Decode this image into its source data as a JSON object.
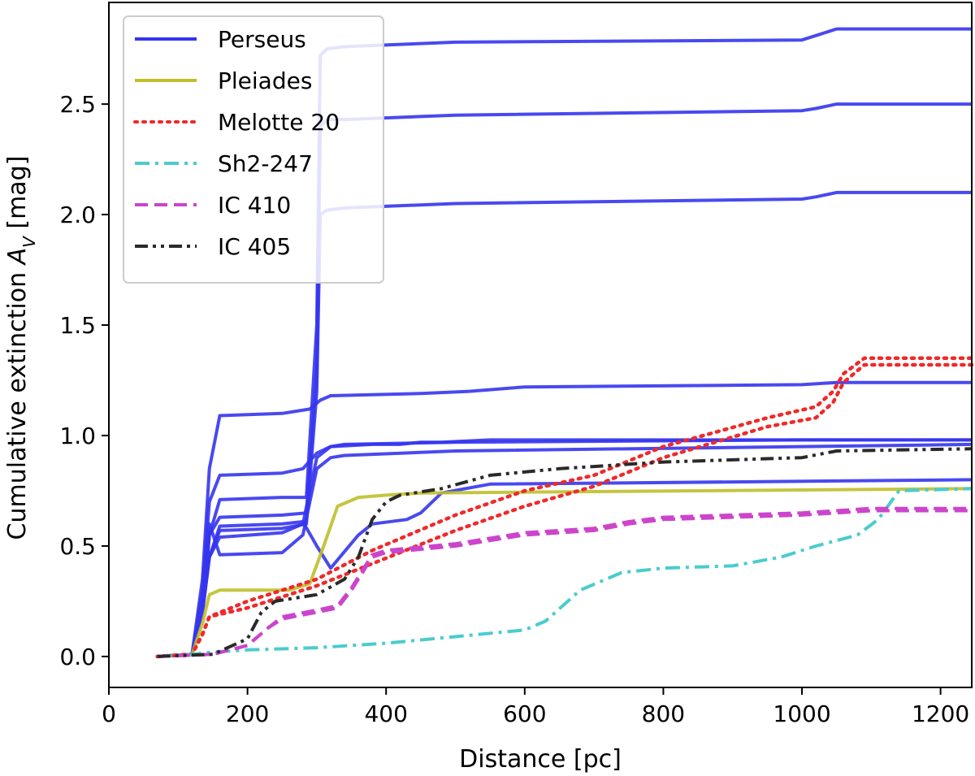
{
  "chart_data": {
    "type": "line",
    "xlabel": "Distance [pc]",
    "ylabel_prefix": "Cumulative extinction ",
    "ylabel_symbol": "A",
    "ylabel_sub": "V",
    "ylabel_suffix": " [mag]",
    "xlim": [
      0,
      1245
    ],
    "ylim": [
      -0.14,
      2.96
    ],
    "xticks": [
      0,
      200,
      400,
      600,
      800,
      1000,
      1200
    ],
    "yticks": [
      0.0,
      0.5,
      1.0,
      1.5,
      2.0,
      2.5
    ],
    "xtick_labels": [
      "0",
      "200",
      "400",
      "600",
      "800",
      "1000",
      "1200"
    ],
    "ytick_labels": [
      "0.0",
      "0.5",
      "1.0",
      "1.5",
      "2.0",
      "2.5"
    ],
    "legend_position": "top-left",
    "legend": [
      {
        "label": "Perseus",
        "color": "#3535ee",
        "dash": "solid"
      },
      {
        "label": "Pleiades",
        "color": "#bfbf2a",
        "dash": "solid"
      },
      {
        "label": "Melotte 20",
        "color": "#ee2a2a",
        "dash": "dotted"
      },
      {
        "label": "Sh2-247",
        "color": "#4acccc",
        "dash": "dashdot"
      },
      {
        "label": "IC 410",
        "color": "#cc44cc",
        "dash": "dashed"
      },
      {
        "label": "IC 405",
        "color": "#2a2a2a",
        "dash": "dashdotdot"
      }
    ],
    "series": [
      {
        "name": "Perseus",
        "color": "#3535ee",
        "dash": "solid",
        "x": [
          70,
          120,
          135,
          145,
          160,
          250,
          285,
          300,
          305,
          315,
          340,
          500,
          1000,
          1020,
          1050,
          1245
        ],
        "y": [
          0,
          0.01,
          0.2,
          0.55,
          0.71,
          0.72,
          0.72,
          1.5,
          2.72,
          2.75,
          2.76,
          2.78,
          2.79,
          2.81,
          2.84,
          2.84
        ]
      },
      {
        "name": "Perseus",
        "color": "#3535ee",
        "dash": "solid",
        "x": [
          70,
          120,
          135,
          145,
          160,
          250,
          285,
          300,
          305,
          315,
          340,
          500,
          1000,
          1020,
          1050,
          1245
        ],
        "y": [
          0,
          0.01,
          0.2,
          0.55,
          0.63,
          0.64,
          0.65,
          1.3,
          2.4,
          2.43,
          2.43,
          2.45,
          2.47,
          2.48,
          2.5,
          2.5
        ]
      },
      {
        "name": "Perseus",
        "color": "#3535ee",
        "dash": "solid",
        "x": [
          70,
          120,
          135,
          145,
          160,
          250,
          285,
          300,
          305,
          315,
          340,
          500,
          1000,
          1020,
          1050,
          1245
        ],
        "y": [
          0,
          0.01,
          0.2,
          0.45,
          0.57,
          0.58,
          0.6,
          1.2,
          2.0,
          2.02,
          2.03,
          2.05,
          2.07,
          2.08,
          2.1,
          2.1
        ]
      },
      {
        "name": "Perseus",
        "color": "#3535ee",
        "dash": "solid",
        "x": [
          70,
          120,
          135,
          145,
          160,
          250,
          290,
          305,
          320,
          450,
          520,
          600,
          1000,
          1050,
          1245
        ],
        "y": [
          0,
          0.01,
          0.35,
          0.85,
          1.09,
          1.1,
          1.12,
          1.16,
          1.18,
          1.19,
          1.2,
          1.22,
          1.23,
          1.24,
          1.24
        ]
      },
      {
        "name": "Perseus",
        "color": "#3535ee",
        "dash": "solid",
        "x": [
          70,
          120,
          135,
          145,
          160,
          250,
          280,
          300,
          320,
          340,
          500,
          1000,
          1245
        ],
        "y": [
          0,
          0.01,
          0.3,
          0.7,
          0.82,
          0.83,
          0.85,
          0.92,
          0.95,
          0.96,
          0.97,
          0.98,
          0.98
        ]
      },
      {
        "name": "Perseus",
        "color": "#3535ee",
        "dash": "solid",
        "x": [
          70,
          120,
          135,
          145,
          160,
          250,
          280,
          300,
          320,
          340,
          500,
          1000,
          1245
        ],
        "y": [
          0,
          0.01,
          0.25,
          0.6,
          0.46,
          0.47,
          0.55,
          0.85,
          0.9,
          0.91,
          0.93,
          0.95,
          0.96
        ]
      },
      {
        "name": "Perseus",
        "color": "#3535ee",
        "dash": "solid",
        "x": [
          70,
          120,
          135,
          145,
          160,
          250,
          280,
          300,
          320,
          380,
          420,
          450,
          480,
          550,
          1245
        ],
        "y": [
          0,
          0.01,
          0.22,
          0.45,
          0.54,
          0.56,
          0.6,
          0.9,
          0.95,
          0.96,
          0.96,
          0.97,
          0.97,
          0.98,
          0.98
        ]
      },
      {
        "name": "Perseus",
        "color": "#3535ee",
        "dash": "solid",
        "x": [
          70,
          120,
          135,
          145,
          160,
          250,
          280,
          300,
          320,
          360,
          380,
          430,
          450,
          480,
          550,
          1245
        ],
        "y": [
          0,
          0.01,
          0.2,
          0.45,
          0.59,
          0.6,
          0.61,
          0.5,
          0.4,
          0.55,
          0.6,
          0.62,
          0.65,
          0.74,
          0.78,
          0.8
        ]
      },
      {
        "name": "Pleiades",
        "color": "#bfbf2a",
        "dash": "solid",
        "x": [
          70,
          120,
          135,
          145,
          160,
          260,
          290,
          310,
          330,
          360,
          400,
          450,
          1245
        ],
        "y": [
          0,
          0.01,
          0.15,
          0.28,
          0.3,
          0.3,
          0.33,
          0.5,
          0.68,
          0.72,
          0.73,
          0.74,
          0.76
        ]
      },
      {
        "name": "Melotte 20",
        "color": "#ee2a2a",
        "dash": "dotted",
        "x": [
          70,
          120,
          135,
          145,
          200,
          300,
          380,
          500,
          600,
          700,
          800,
          950,
          1020,
          1045,
          1060,
          1090,
          1245
        ],
        "y": [
          0,
          0.01,
          0.1,
          0.18,
          0.25,
          0.35,
          0.48,
          0.64,
          0.75,
          0.82,
          0.95,
          1.08,
          1.13,
          1.2,
          1.28,
          1.35,
          1.35
        ]
      },
      {
        "name": "Melotte 20",
        "color": "#ee2a2a",
        "dash": "dotted",
        "x": [
          70,
          120,
          135,
          145,
          200,
          300,
          380,
          500,
          600,
          700,
          800,
          950,
          1020,
          1045,
          1060,
          1090,
          1245
        ],
        "y": [
          0,
          0.01,
          0.1,
          0.18,
          0.22,
          0.32,
          0.42,
          0.57,
          0.68,
          0.77,
          0.9,
          1.04,
          1.08,
          1.15,
          1.24,
          1.32,
          1.32
        ]
      },
      {
        "name": "Sh2-247",
        "color": "#4acccc",
        "dash": "dashdot",
        "x": [
          70,
          120,
          150,
          200,
          300,
          400,
          500,
          600,
          630,
          680,
          740,
          800,
          900,
          970,
          1020,
          1080,
          1110,
          1140,
          1245
        ],
        "y": [
          0,
          0.01,
          0.02,
          0.03,
          0.04,
          0.06,
          0.09,
          0.12,
          0.16,
          0.3,
          0.38,
          0.4,
          0.41,
          0.45,
          0.5,
          0.55,
          0.62,
          0.75,
          0.76
        ]
      },
      {
        "name": "IC 410",
        "color": "#cc44cc",
        "dash": "dashed",
        "x": [
          70,
          150,
          200,
          230,
          250,
          300,
          330,
          350,
          380,
          400,
          500,
          600,
          700,
          750,
          800,
          1000,
          1100,
          1245
        ],
        "y": [
          0,
          0.01,
          0.05,
          0.13,
          0.17,
          0.2,
          0.22,
          0.3,
          0.45,
          0.47,
          0.5,
          0.55,
          0.57,
          0.6,
          0.62,
          0.64,
          0.66,
          0.66
        ]
      },
      {
        "name": "IC 410",
        "color": "#cc44cc",
        "dash": "dashed",
        "x": [
          70,
          150,
          200,
          230,
          250,
          300,
          330,
          350,
          380,
          400,
          500,
          600,
          700,
          750,
          800,
          1000,
          1100,
          1245
        ],
        "y": [
          0,
          0.01,
          0.05,
          0.13,
          0.18,
          0.21,
          0.23,
          0.31,
          0.46,
          0.48,
          0.51,
          0.56,
          0.58,
          0.61,
          0.63,
          0.65,
          0.67,
          0.67
        ]
      },
      {
        "name": "IC 405",
        "color": "#2a2a2a",
        "dash": "dashdotdot",
        "x": [
          70,
          150,
          200,
          220,
          240,
          300,
          340,
          360,
          380,
          400,
          420,
          480,
          550,
          650,
          700,
          750,
          800,
          1000,
          1050,
          1245
        ],
        "y": [
          0,
          0.01,
          0.08,
          0.2,
          0.25,
          0.28,
          0.35,
          0.45,
          0.62,
          0.7,
          0.73,
          0.76,
          0.82,
          0.85,
          0.86,
          0.87,
          0.88,
          0.9,
          0.93,
          0.94
        ]
      }
    ]
  }
}
